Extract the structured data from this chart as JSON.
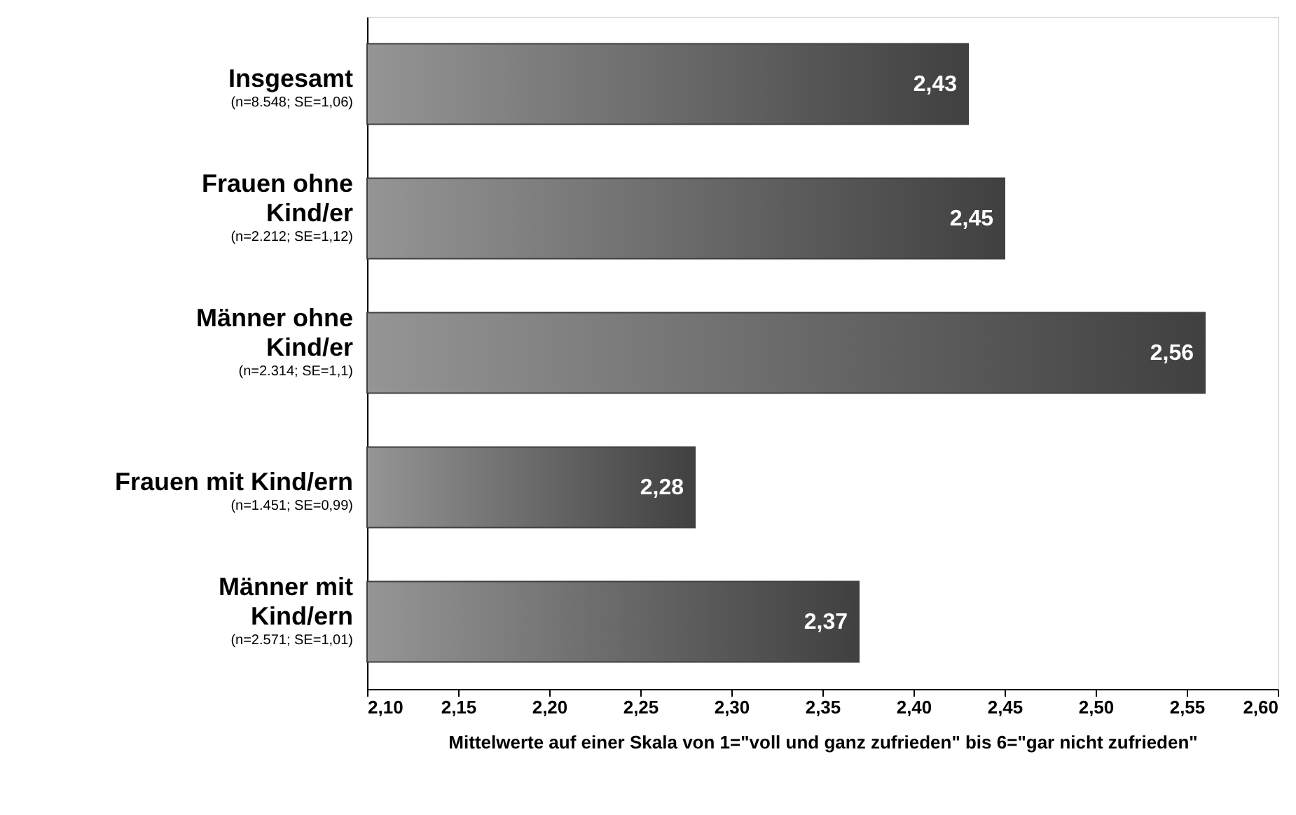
{
  "chart_data": {
    "type": "bar",
    "orientation": "horizontal",
    "categories": [
      "Insgesamt\n(n=8.548; SE=1,06)",
      "Frauen ohne\nKind/er\n(n=2.212; SE=1,12)",
      "Männer ohne\nKind/er\n(n=2.314; SE=1,1)",
      "Frauen mit Kind/ern\n(n=1.451; SE=0,99)",
      "Männer mit\nKind/ern\n(n=2.571; SE=1,01)"
    ],
    "values": [
      2.43,
      2.45,
      2.56,
      2.28,
      2.37
    ],
    "value_labels": [
      "2,43",
      "2,45",
      "2,56",
      "2,28",
      "2,37"
    ],
    "color": "#404040",
    "xlim": [
      2.1,
      2.6
    ],
    "xticks": [
      {
        "value": 2.1,
        "label": "2,10"
      },
      {
        "value": 2.15,
        "label": "2,15"
      },
      {
        "value": 2.2,
        "label": "2,20"
      },
      {
        "value": 2.25,
        "label": "2,25"
      },
      {
        "value": 2.3,
        "label": "2,30"
      },
      {
        "value": 2.35,
        "label": "2,35"
      },
      {
        "value": 2.4,
        "label": "2,40"
      },
      {
        "value": 2.45,
        "label": "2,45"
      },
      {
        "value": 2.5,
        "label": "2,50"
      },
      {
        "value": 2.55,
        "label": "2,55"
      },
      {
        "value": 2.6,
        "label": "2,60"
      }
    ],
    "xlabel": "Mittelwerte auf einer Skala von 1=\"voll und ganz zufrieden\" bis 6=\"gar nicht zufrieden\"",
    "grid": false
  }
}
